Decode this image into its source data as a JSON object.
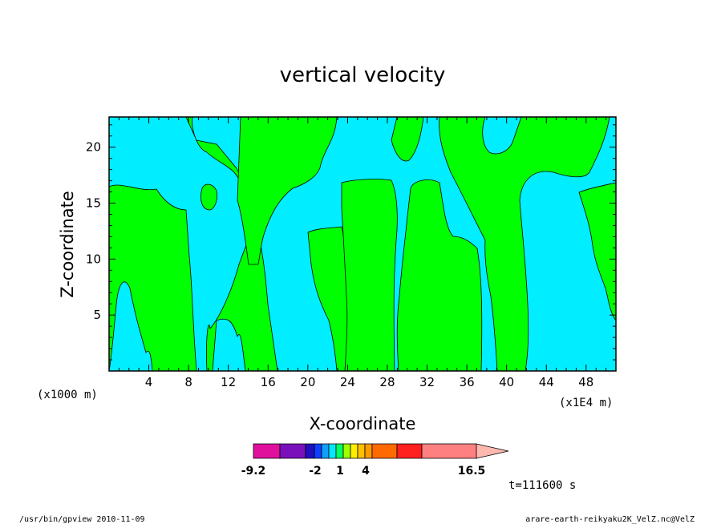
{
  "chart_data": {
    "type": "heatmap",
    "title": "vertical velocity",
    "xlabel": "X-coordinate",
    "ylabel": "Z-coordinate",
    "x_ticks": [
      "4",
      "8",
      "12",
      "16",
      "20",
      "24",
      "28",
      "32",
      "36",
      "40",
      "44",
      "48"
    ],
    "y_ticks": [
      "5",
      "10",
      "15",
      "20"
    ],
    "xlim": [
      0,
      51
    ],
    "ylim": [
      0,
      22.7
    ],
    "x_unit_left": "(x1000 m)",
    "x_unit_right": "(x1E4 m)",
    "colorbar": {
      "labels": [
        "-9.2",
        "-2",
        "1",
        "4",
        "16.5"
      ],
      "colors": [
        "#e0109c",
        "#7a10bb",
        "#2010c0",
        "#1040ff",
        "#10a0ff",
        "#00e8ff",
        "#00ff60",
        "#a0ff00",
        "#ffee00",
        "#ffc000",
        "#ff9a00",
        "#ff6a00",
        "#ff2020",
        "#ff8080",
        "#ffb8b0"
      ]
    },
    "field_colors": {
      "negative": "#00eeff",
      "positive": "#00ff00"
    },
    "time_label": "t=111600 s",
    "positive_regions": [
      {
        "x": [
          0,
          7.6
        ],
        "z_top": 16.8
      },
      {
        "x": [
          10.2,
          17
        ],
        "z_top": 22.7
      },
      {
        "x": [
          19,
          24.8
        ],
        "z_top": 12.8
      },
      {
        "x": [
          23.7,
          28.7
        ],
        "z_top": 17.3
      },
      {
        "x": [
          29.6,
          33.8
        ],
        "z_top": 17.3
      },
      {
        "x": [
          33.8,
          38.4
        ],
        "z_top": 12.3
      },
      {
        "x": [
          37.2,
          42.6
        ],
        "z_top": 22.7
      },
      {
        "x": [
          48,
          51
        ],
        "z_top": 16.8
      }
    ]
  },
  "footer": {
    "left": "/usr/bin/gpview   2010-11-09",
    "right": "arare-earth-reikyaku2K_VelZ.nc@VelZ"
  }
}
